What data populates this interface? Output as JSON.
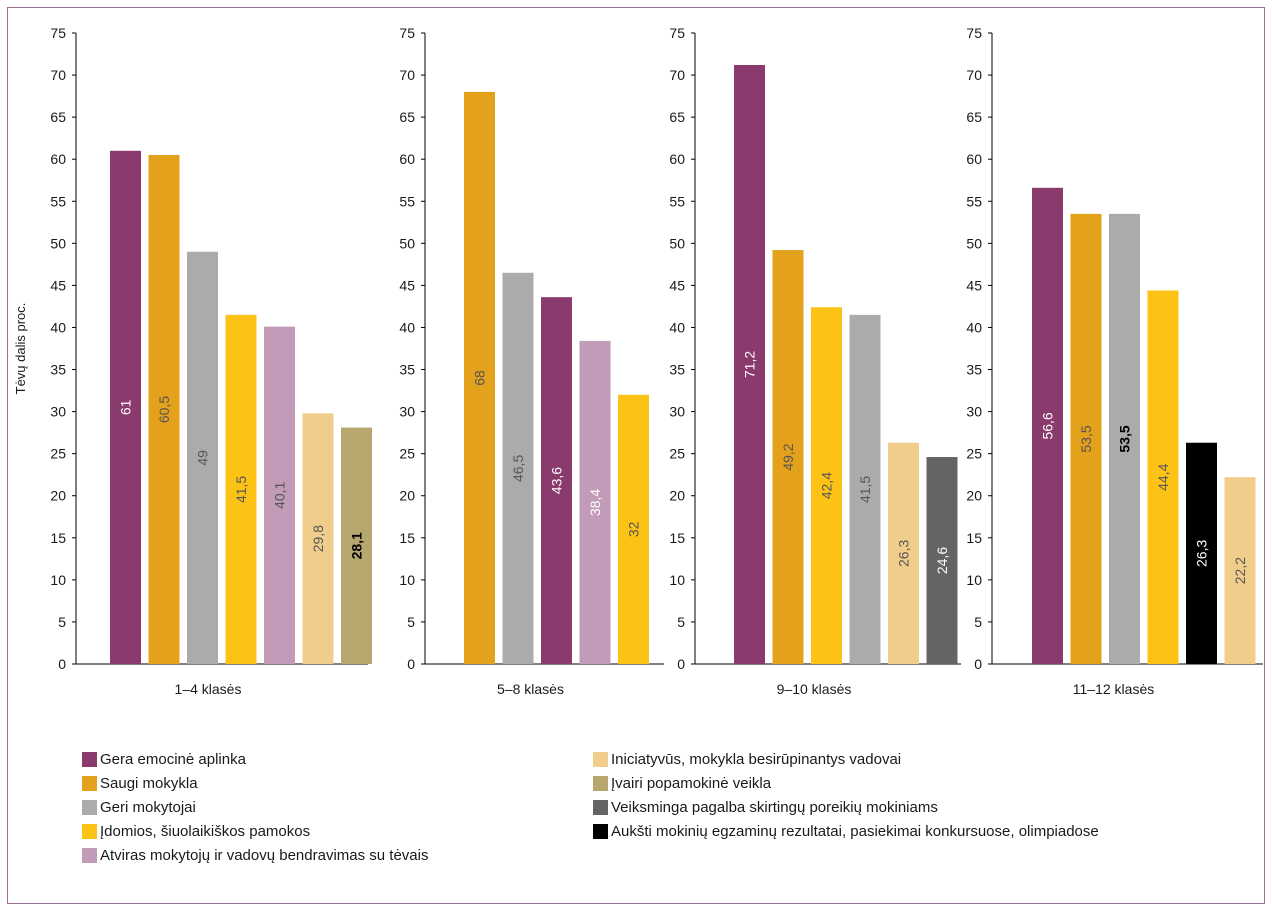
{
  "chart_data": {
    "type": "bar",
    "ylabel": "Tėvų dalis proc.",
    "ylim": [
      0,
      75
    ],
    "yticks": [
      "0",
      "5",
      "10",
      "15",
      "20",
      "25",
      "30",
      "35",
      "40",
      "45",
      "50",
      "55",
      "60",
      "65",
      "70",
      "75"
    ],
    "series_defs": [
      {
        "key": "emo",
        "name": "Gera emocinė aplinka",
        "color": "#8b3a6e"
      },
      {
        "key": "saugi",
        "name": "Saugi mokykla",
        "color": "#e4a11b"
      },
      {
        "key": "geri",
        "name": "Geri mokytojai",
        "color": "#ababab"
      },
      {
        "key": "idom",
        "name": "Įdomios, šiuolaikiškos pamokos",
        "color": "#fcc316"
      },
      {
        "key": "atv",
        "name": "Atviras mokytojų ir vadovų bendravimas su tėvais",
        "color": "#c29bb8"
      },
      {
        "key": "inic",
        "name": "Iniciatyvūs, mokykla besirūpinantys vadovai",
        "color": "#f1cd8c"
      },
      {
        "key": "ivair",
        "name": "Įvairi popamokinė veikla",
        "color": "#b7a76e"
      },
      {
        "key": "veiks",
        "name": "Veiksminga pagalba skirtingų poreikių mokiniams",
        "color": "#646464"
      },
      {
        "key": "auksti",
        "name": "Aukšti mokinių egzaminų rezultatai, pasiekimai konkursuose, olimpiadose",
        "color": "#000000"
      }
    ],
    "legend_left": [
      "emo",
      "saugi",
      "geri",
      "idom",
      "atv"
    ],
    "legend_right": [
      "inic",
      "ivair",
      "veiks",
      "auksti"
    ],
    "panels": [
      {
        "category": "1–4 klasės",
        "bars": [
          {
            "series": "emo",
            "value": 61,
            "label": "61",
            "label_color": "#ffffff",
            "bold": false
          },
          {
            "series": "saugi",
            "value": 60.5,
            "label": "60,5",
            "label_color": "#555555",
            "bold": false
          },
          {
            "series": "geri",
            "value": 49,
            "label": "49",
            "label_color": "#555555",
            "bold": false
          },
          {
            "series": "idom",
            "value": 41.5,
            "label": "41,5",
            "label_color": "#555555",
            "bold": false
          },
          {
            "series": "atv",
            "value": 40.1,
            "label": "40,1",
            "label_color": "#555555",
            "bold": false
          },
          {
            "series": "inic",
            "value": 29.8,
            "label": "29,8",
            "label_color": "#555555",
            "bold": false
          },
          {
            "series": "ivair",
            "value": 28.1,
            "label": "28,1",
            "label_color": "#000000",
            "bold": true
          }
        ]
      },
      {
        "category": "5–8 klasės",
        "bars": [
          {
            "series": "saugi",
            "value": 68,
            "label": "68",
            "label_color": "#555555",
            "bold": false
          },
          {
            "series": "geri",
            "value": 46.5,
            "label": "46,5",
            "label_color": "#555555",
            "bold": false
          },
          {
            "series": "emo",
            "value": 43.6,
            "label": "43,6",
            "label_color": "#ffffff",
            "bold": false
          },
          {
            "series": "atv",
            "value": 38.4,
            "label": "38,4",
            "label_color": "#ffffff",
            "bold": false
          },
          {
            "series": "idom",
            "value": 32,
            "label": "32",
            "label_color": "#555555",
            "bold": false
          }
        ]
      },
      {
        "category": "9–10 klasės",
        "bars": [
          {
            "series": "emo",
            "value": 71.2,
            "label": "71,2",
            "label_color": "#ffffff",
            "bold": false
          },
          {
            "series": "saugi",
            "value": 49.2,
            "label": "49,2",
            "label_color": "#555555",
            "bold": false
          },
          {
            "series": "idom",
            "value": 42.4,
            "label": "42,4",
            "label_color": "#555555",
            "bold": false
          },
          {
            "series": "geri",
            "value": 41.5,
            "label": "41,5",
            "label_color": "#555555",
            "bold": false
          },
          {
            "series": "inic",
            "value": 26.3,
            "label": "26,3",
            "label_color": "#555555",
            "bold": false
          },
          {
            "series": "veiks",
            "value": 24.6,
            "label": "24,6",
            "label_color": "#ffffff",
            "bold": false
          }
        ]
      },
      {
        "category": "11–12 klasės",
        "bars": [
          {
            "series": "emo",
            "value": 56.6,
            "label": "56,6",
            "label_color": "#ffffff",
            "bold": false
          },
          {
            "series": "saugi",
            "value": 53.5,
            "label": "53,5",
            "label_color": "#555555",
            "bold": false
          },
          {
            "series": "geri",
            "value": 53.5,
            "label": "53,5",
            "label_color": "#000000",
            "bold": true
          },
          {
            "series": "idom",
            "value": 44.4,
            "label": "44,4",
            "label_color": "#555555",
            "bold": false
          },
          {
            "series": "auksti",
            "value": 26.3,
            "label": "26,3",
            "label_color": "#ffffff",
            "bold": false
          },
          {
            "series": "inic",
            "value": 22.2,
            "label": "22,2",
            "label_color": "#555555",
            "bold": false
          }
        ]
      }
    ],
    "grid": false,
    "legend_position": "bottom"
  }
}
